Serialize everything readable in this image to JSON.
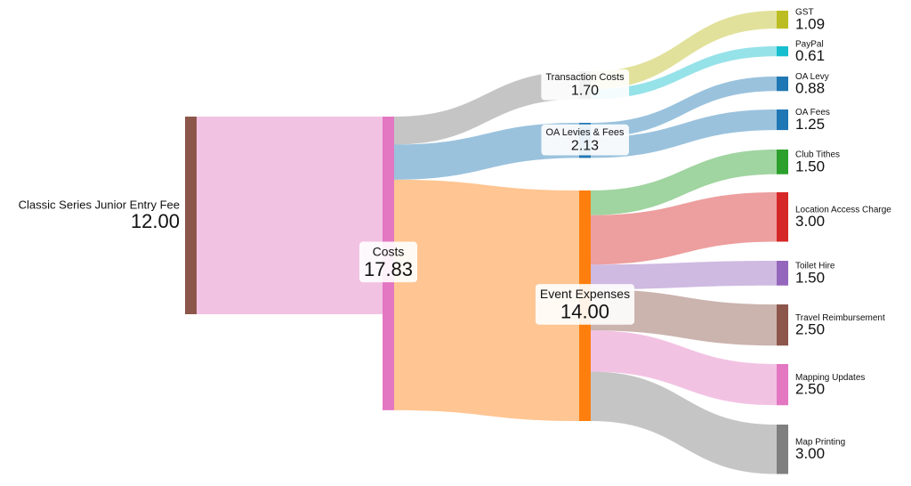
{
  "chart_data": {
    "type": "sankey",
    "nodes": [
      "Classic Series Junior Entry Fee",
      "Costs",
      "Transaction Costs",
      "OA Levies & Fees",
      "Event Expenses",
      "GST",
      "PayPal",
      "OA Levy",
      "OA Fees",
      "Club Tithes",
      "Location Access Charge",
      "Toilet Hire",
      "Travel Reimbursement",
      "Mapping Updates",
      "Map Printing"
    ],
    "values": [
      12,
      17.83,
      1.7,
      2.13,
      14,
      1.09,
      0.61,
      0.88,
      1.25,
      1.5,
      3,
      1.5,
      2.5,
      2.5,
      3
    ],
    "value_labels": [
      "12.00",
      "17.83",
      "1.70",
      "2.13",
      "14.00",
      "1.09",
      "0.61",
      "0.88",
      "1.25",
      "1.50",
      "3.00",
      "1.50",
      "2.50",
      "2.50",
      "3.00"
    ],
    "colors": [
      "#8c564b",
      "#e377c2",
      "#7f7f7f",
      "#1f77b4",
      "#ff7f0e",
      "#bcbd22",
      "#17becf",
      "#1f77b4",
      "#1f77b4",
      "#2ca02c",
      "#d62728",
      "#9467bd",
      "#8c564b",
      "#e377c2",
      "#7f7f7f"
    ],
    "links": [
      {
        "source": 0,
        "target": 1,
        "value": 12
      },
      {
        "source": 1,
        "target": 2,
        "value": 1.7
      },
      {
        "source": 1,
        "target": 3,
        "value": 2.13
      },
      {
        "source": 1,
        "target": 4,
        "value": 14
      },
      {
        "source": 2,
        "target": 5,
        "value": 1.09
      },
      {
        "source": 2,
        "target": 6,
        "value": 0.61
      },
      {
        "source": 3,
        "target": 7,
        "value": 0.88
      },
      {
        "source": 3,
        "target": 8,
        "value": 1.25
      },
      {
        "source": 4,
        "target": 9,
        "value": 1.5
      },
      {
        "source": 4,
        "target": 10,
        "value": 3
      },
      {
        "source": 4,
        "target": 11,
        "value": 1.5
      },
      {
        "source": 4,
        "target": 12,
        "value": 2.5
      },
      {
        "source": 4,
        "target": 13,
        "value": 2.5
      },
      {
        "source": 4,
        "target": 14,
        "value": 3
      }
    ]
  }
}
